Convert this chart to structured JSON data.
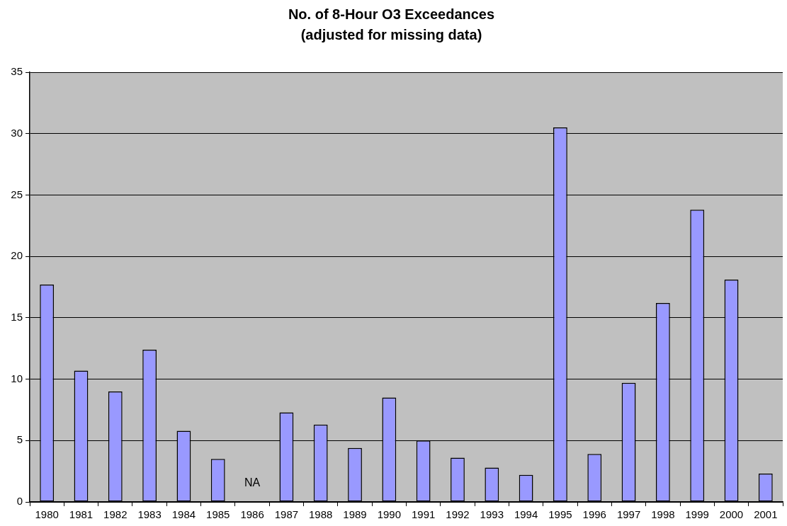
{
  "chart_data": {
    "type": "bar",
    "title": "No. of 8-Hour O3 Exceedances",
    "subtitle": "(adjusted for missing data)",
    "categories": [
      "1980",
      "1981",
      "1982",
      "1983",
      "1984",
      "1985",
      "1986",
      "1987",
      "1988",
      "1989",
      "1990",
      "1991",
      "1992",
      "1993",
      "1994",
      "1995",
      "1996",
      "1997",
      "1998",
      "1999",
      "2000",
      "2001"
    ],
    "values": [
      17.7,
      10.7,
      9.0,
      12.4,
      5.8,
      3.5,
      null,
      7.3,
      6.3,
      4.4,
      8.5,
      5.0,
      3.6,
      2.8,
      2.2,
      30.5,
      3.9,
      9.7,
      16.2,
      23.8,
      18.1,
      2.3
    ],
    "color": "#9999ff",
    "ylim": [
      0,
      35
    ],
    "yticks": [
      0,
      5,
      10,
      15,
      20,
      25,
      30,
      35
    ],
    "grid": "y",
    "annotations": [
      "NA"
    ]
  }
}
